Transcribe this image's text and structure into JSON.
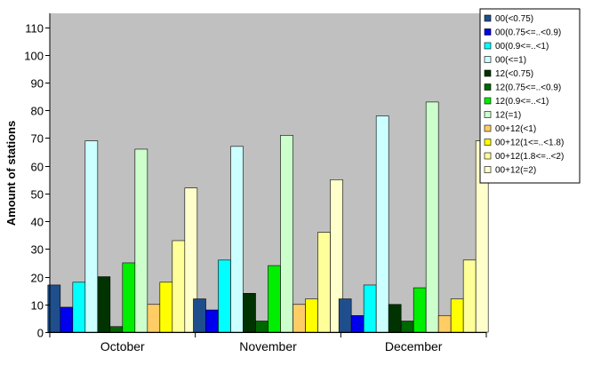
{
  "chart_data": {
    "type": "bar",
    "ylabel": "Amount of stations",
    "xlabel": "",
    "ylim": [
      0,
      115
    ],
    "yticks": [
      0,
      10,
      20,
      30,
      40,
      50,
      60,
      70,
      80,
      90,
      100,
      110
    ],
    "grid": false,
    "legend_position": "top-right",
    "plot_background": "#c0c0c0",
    "categories": [
      "October",
      "November",
      "December"
    ],
    "series": [
      {
        "name": "00(<0.75)",
        "color": "#1f4e8c",
        "values": [
          17,
          12,
          12
        ]
      },
      {
        "name": "00(0.75<=..<0.9)",
        "color": "#0000ee",
        "values": [
          9,
          8,
          6
        ]
      },
      {
        "name": "00(0.9<=..<1)",
        "color": "#00ffff",
        "values": [
          18,
          26,
          17
        ]
      },
      {
        "name": "00(<=1)",
        "color": "#ccffff",
        "values": [
          69,
          67,
          78
        ]
      },
      {
        "name": "12(<0.75)",
        "color": "#003300",
        "values": [
          20,
          14,
          10
        ]
      },
      {
        "name": "12(0.75<=..<0.9)",
        "color": "#006600",
        "values": [
          2,
          4,
          4
        ]
      },
      {
        "name": "12(0.9<=..<1)",
        "color": "#00ee00",
        "values": [
          25,
          24,
          16
        ]
      },
      {
        "name": "12(=1)",
        "color": "#ccffcc",
        "values": [
          66,
          71,
          83
        ]
      },
      {
        "name": "00+12(<1)",
        "color": "#ffcc66",
        "values": [
          10,
          10,
          6
        ]
      },
      {
        "name": "00+12(1<=..<1.8)",
        "color": "#ffff00",
        "values": [
          18,
          12,
          12
        ]
      },
      {
        "name": "00+12(1.8<=..<2)",
        "color": "#ffff99",
        "values": [
          33,
          36,
          26
        ]
      },
      {
        "name": "00+12(=2)",
        "color": "#ffffcc",
        "values": [
          52,
          55,
          69
        ]
      }
    ]
  }
}
